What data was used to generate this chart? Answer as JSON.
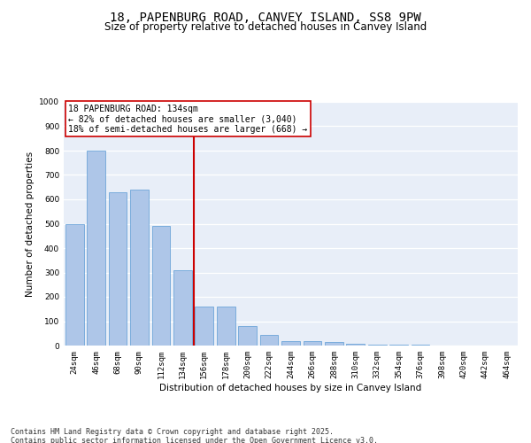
{
  "title": "18, PAPENBURG ROAD, CANVEY ISLAND, SS8 9PW",
  "subtitle": "Size of property relative to detached houses in Canvey Island",
  "xlabel": "Distribution of detached houses by size in Canvey Island",
  "ylabel": "Number of detached properties",
  "categories": [
    "24sqm",
    "46sqm",
    "68sqm",
    "90sqm",
    "112sqm",
    "134sqm",
    "156sqm",
    "178sqm",
    "200sqm",
    "222sqm",
    "244sqm",
    "266sqm",
    "288sqm",
    "310sqm",
    "332sqm",
    "354sqm",
    "376sqm",
    "398sqm",
    "420sqm",
    "442sqm",
    "464sqm"
  ],
  "values": [
    500,
    800,
    630,
    640,
    490,
    310,
    160,
    160,
    80,
    45,
    20,
    20,
    15,
    8,
    5,
    3,
    2,
    1,
    1,
    1,
    1
  ],
  "bar_color": "#aec6e8",
  "bar_edge_color": "#5b9bd5",
  "vline_index": 5,
  "vline_color": "#cc0000",
  "annotation_text": "18 PAPENBURG ROAD: 134sqm\n← 82% of detached houses are smaller (3,040)\n18% of semi-detached houses are larger (668) →",
  "annotation_box_color": "#ffffff",
  "annotation_box_edge": "#cc0000",
  "ylim": [
    0,
    1000
  ],
  "yticks": [
    0,
    100,
    200,
    300,
    400,
    500,
    600,
    700,
    800,
    900,
    1000
  ],
  "background_color": "#e8eef8",
  "grid_color": "#ffffff",
  "footer_text": "Contains HM Land Registry data © Crown copyright and database right 2025.\nContains public sector information licensed under the Open Government Licence v3.0.",
  "title_fontsize": 10,
  "subtitle_fontsize": 8.5,
  "axis_label_fontsize": 7.5,
  "tick_fontsize": 6.5,
  "annotation_fontsize": 7,
  "footer_fontsize": 6
}
